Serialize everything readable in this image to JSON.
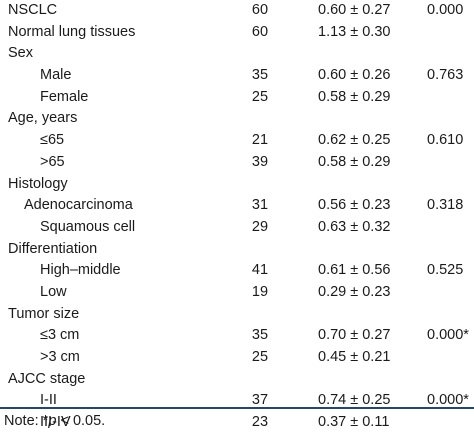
{
  "rows": [
    {
      "label": "NSCLC",
      "n": "60",
      "value": "0.60 ± 0.27",
      "p": "0.000",
      "indent": 0
    },
    {
      "label": "Normal lung tissues",
      "n": "60",
      "value": "1.13 ± 0.30",
      "p": "",
      "indent": 0
    },
    {
      "label": "Sex",
      "n": "",
      "value": "",
      "p": "",
      "indent": 0
    },
    {
      "label": "Male",
      "n": "35",
      "value": "0.60 ± 0.26",
      "p": "0.763",
      "indent": 2
    },
    {
      "label": "Female",
      "n": "25",
      "value": "0.58 ± 0.29",
      "p": "",
      "indent": 2
    },
    {
      "label": "Age, years",
      "n": "",
      "value": "",
      "p": "",
      "indent": 0
    },
    {
      "label": "≤65",
      "n": "21",
      "value": "0.62 ± 0.25",
      "p": "0.610",
      "indent": 2
    },
    {
      "label": ">65",
      "n": "39",
      "value": "0.58 ± 0.29",
      "p": "",
      "indent": 2
    },
    {
      "label": "Histology",
      "n": "",
      "value": "",
      "p": "",
      "indent": 0
    },
    {
      "label": "Adenocarcinoma",
      "n": "31",
      "value": "0.56 ± 0.23",
      "p": "0.318",
      "indent": 1
    },
    {
      "label": "Squamous cell",
      "n": "29",
      "value": "0.63 ± 0.32",
      "p": "",
      "indent": 2
    },
    {
      "label": "Differentiation",
      "n": "",
      "value": "",
      "p": "",
      "indent": 0
    },
    {
      "label": "High–middle",
      "n": "41",
      "value": "0.61 ± 0.56",
      "p": "0.525",
      "indent": 2
    },
    {
      "label": "Low",
      "n": "19",
      "value": "0.29 ± 0.23",
      "p": "",
      "indent": 2
    },
    {
      "label": "Tumor size",
      "n": "",
      "value": "",
      "p": "",
      "indent": 0
    },
    {
      "label": "≤3 cm",
      "n": "35",
      "value": "0.70 ± 0.27",
      "p": "0.000*",
      "indent": 2
    },
    {
      "label": ">3 cm",
      "n": "25",
      "value": "0.45 ± 0.21",
      "p": "",
      "indent": 2
    },
    {
      "label": "AJCC stage",
      "n": "",
      "value": "",
      "p": "",
      "indent": 0
    },
    {
      "label": "I-II",
      "n": "37",
      "value": "0.74 ± 0.25",
      "p": "0.000*",
      "indent": 2
    },
    {
      "label": "III-IV",
      "n": "23",
      "value": "0.37 ± 0.11",
      "p": "",
      "indent": 2
    }
  ],
  "note": {
    "prefix": "Note: *",
    "p_symbol": "p",
    "suffix": " < 0.05."
  }
}
